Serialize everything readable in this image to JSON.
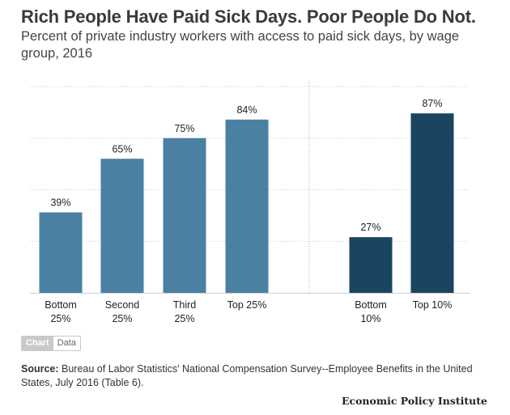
{
  "title": "Rich People Have Paid Sick Days. Poor People Do Not.",
  "subtitle": "Percent of private industry workers with access to paid sick days, by wage group, 2016",
  "tabs": {
    "chart": "Chart",
    "data": "Data"
  },
  "source": {
    "label": "Source:",
    "text": " Bureau of Labor Statistics' National Compensation Survey--Employee Benefits in the United States, July 2016 (Table 6)."
  },
  "brand": "Economic Policy Institute",
  "colors": {
    "quartile_bars": "#4a81a3",
    "decile_bars": "#1a4560",
    "gridline": "#cccccc"
  },
  "chart_data": {
    "type": "bar",
    "ylim": [
      0,
      100
    ],
    "grid": "dotted horizontal",
    "groups": [
      {
        "categories": [
          [
            "Bottom",
            "25%"
          ],
          [
            "Second",
            "25%"
          ],
          [
            "Third",
            "25%"
          ],
          [
            "Top 25%"
          ]
        ],
        "values": [
          39,
          65,
          75,
          84
        ],
        "labels": [
          "39%",
          "65%",
          "75%",
          "84%"
        ],
        "color": "#4a81a3"
      },
      {
        "categories": [
          [
            "Bottom",
            "10%"
          ],
          [
            "Top 10%"
          ]
        ],
        "values": [
          27,
          87
        ],
        "labels": [
          "27%",
          "87%"
        ],
        "color": "#1a4560"
      }
    ]
  }
}
